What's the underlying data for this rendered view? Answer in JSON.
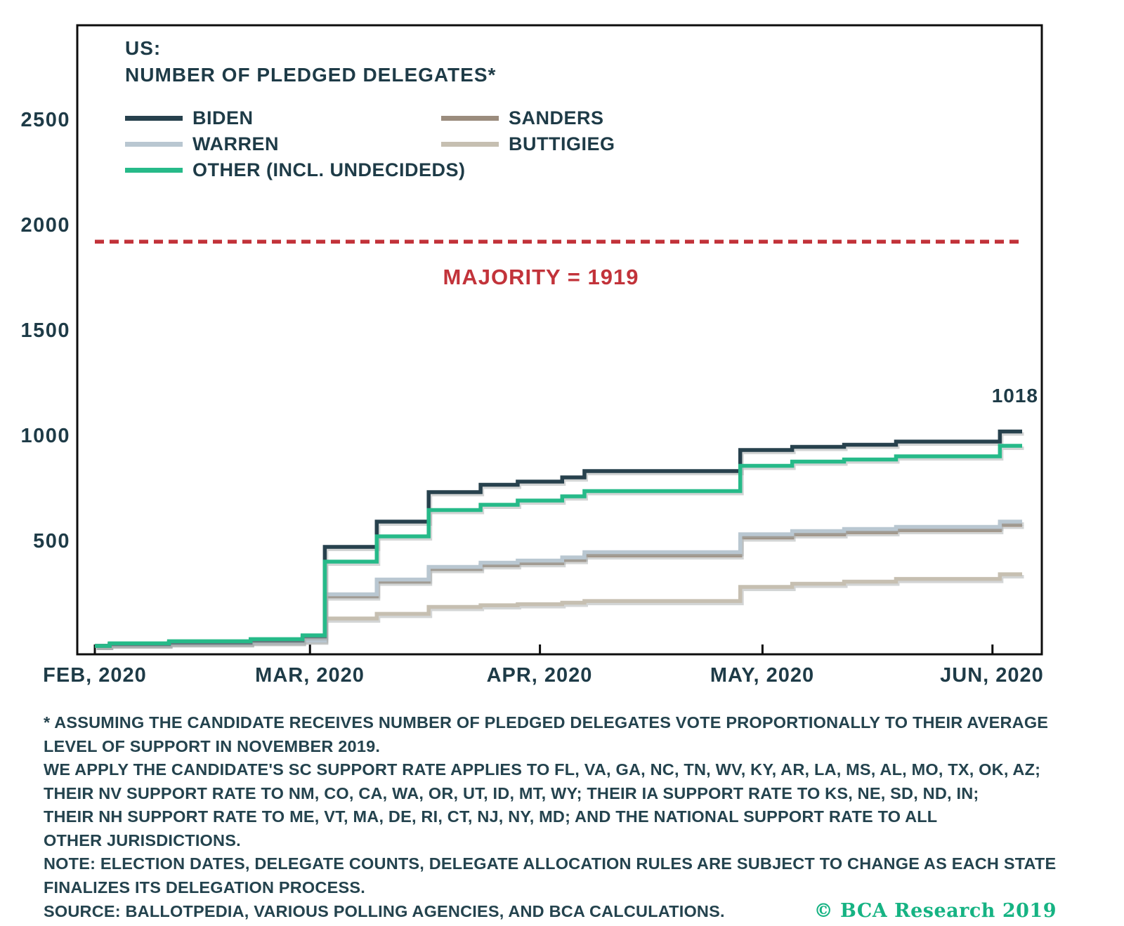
{
  "header": {
    "title_line1": "US:",
    "title_line2": "NUMBER OF PLEDGED DELEGATES*"
  },
  "legend": {
    "items": [
      {
        "label": "BIDEN",
        "series": "BIDEN"
      },
      {
        "label": "SANDERS",
        "series": "SANDERS"
      },
      {
        "label": "WARREN",
        "series": "WARREN"
      },
      {
        "label": "BUTTIGIEG",
        "series": "BUTTIGIEG"
      },
      {
        "label": "OTHER (INCL. UNDECIDEDS)",
        "series": "OTHER"
      }
    ]
  },
  "axes": {
    "y_ticks": [
      "2500",
      "2000",
      "1500",
      "1000",
      "500"
    ],
    "x_ticks": [
      "FEB, 2020",
      "MAR, 2020",
      "APR, 2020",
      "MAY, 2020",
      "JUN, 2020"
    ]
  },
  "annotations": {
    "majority_label": "MAJORITY = 1919",
    "end_label": "1018"
  },
  "footnotes": {
    "lines": [
      "* ASSUMING THE CANDIDATE RECEIVES NUMBER OF PLEDGED DELEGATES VOTE PROPORTIONALLY TO THEIR AVERAGE",
      "LEVEL OF SUPPORT IN NOVEMBER 2019.",
      "WE APPLY THE CANDIDATE'S SC SUPPORT RATE APPLIES TO FL, VA, GA, NC, TN, WV, KY, AR, LA, MS, AL, MO, TX, OK, AZ;",
      "THEIR NV SUPPORT RATE TO NM, CO, CA, WA, OR, UT, ID, MT, WY; THEIR IA SUPPORT RATE TO KS, NE, SD, ND, IN;",
      "THEIR NH SUPPORT RATE TO ME, VT, MA, DE, RI, CT, NJ, NY, MD; AND THE NATIONAL SUPPORT RATE TO ALL",
      "OTHER JURISDICTIONS.",
      "NOTE: ELECTION DATES, DELEGATE COUNTS, DELEGATE ALLOCATION RULES ARE SUBJECT TO CHANGE AS EACH STATE",
      "FINALIZES ITS DELEGATION PROCESS.",
      "SOURCE: BALLOTPEDIA, VARIOUS POLLING AGENCIES, AND BCA CALCULATIONS."
    ],
    "copyright": "© BCA Research 2019"
  },
  "colors": {
    "text": "#1e3b47",
    "majority_red": "#c2333a",
    "bca_green": "#16b383",
    "axis_black": "#0d0d0d",
    "line_shadow": "#a8abac"
  },
  "chart_data": {
    "type": "line",
    "step": true,
    "title": "US: NUMBER OF PLEDGED DELEGATES*",
    "xlabel": "",
    "ylabel": "",
    "ylim": [
      0,
      2950
    ],
    "yticks": [
      500,
      1000,
      1500,
      2000,
      2500
    ],
    "grid": false,
    "legend_position": "top-left",
    "x_range_labels": [
      "FEB, 2020",
      "MAR, 2020",
      "APR, 2020",
      "MAY, 2020",
      "JUN, 2020"
    ],
    "month_tick_days": [
      0,
      29,
      60,
      90,
      121
    ],
    "majority_line": {
      "value": 1919,
      "label": "MAJORITY = 1919",
      "style": "dashed",
      "color": "#c2333a"
    },
    "end_label": {
      "text": "1018",
      "series": "BIDEN"
    },
    "dates": [
      "FEB 3",
      "FEB 11",
      "FEB 22",
      "FEB 29",
      "MAR 3",
      "MAR 10",
      "MAR 17",
      "MAR 24",
      "MAR 29",
      "APR 4",
      "APR 7",
      "APR 28",
      "MAY 5",
      "MAY 12",
      "MAY 19",
      "JUN 2"
    ],
    "days": [
      2,
      10,
      21,
      28,
      31,
      38,
      45,
      52,
      57,
      63,
      66,
      87,
      94,
      101,
      108,
      122
    ],
    "series": [
      {
        "name": "BIDEN",
        "color": "#27414d",
        "values": [
          8,
          15,
          25,
          45,
          470,
          590,
          730,
          765,
          780,
          800,
          830,
          930,
          945,
          955,
          970,
          1018
        ]
      },
      {
        "name": "SANDERS",
        "color": "#9b8c7d",
        "values": [
          10,
          18,
          26,
          35,
          235,
          305,
          365,
          383,
          393,
          408,
          430,
          515,
          530,
          540,
          550,
          575
        ]
      },
      {
        "name": "WARREN",
        "color": "#b9c7d1",
        "values": [
          6,
          12,
          18,
          25,
          245,
          315,
          375,
          395,
          405,
          420,
          445,
          530,
          545,
          555,
          565,
          590
        ]
      },
      {
        "name": "BUTTIGIEG",
        "color": "#c6bfb1",
        "values": [
          8,
          14,
          20,
          28,
          130,
          152,
          185,
          193,
          198,
          205,
          213,
          280,
          295,
          305,
          318,
          340
        ]
      },
      {
        "name": "OTHER",
        "color": "#26ba89",
        "values": [
          12,
          22,
          32,
          50,
          400,
          520,
          645,
          670,
          690,
          710,
          735,
          855,
          875,
          885,
          900,
          950
        ]
      }
    ]
  }
}
